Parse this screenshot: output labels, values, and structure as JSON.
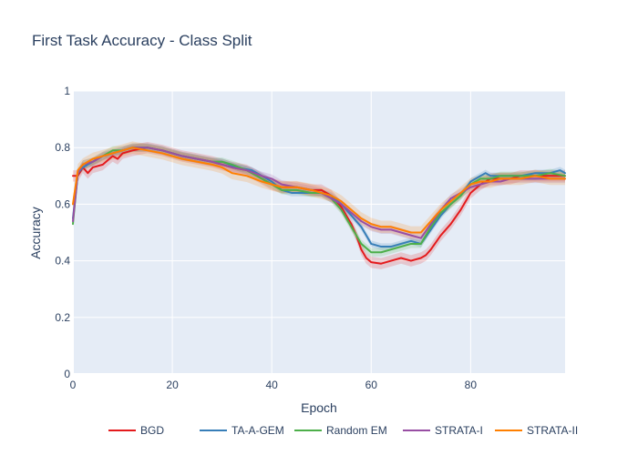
{
  "chart_data": {
    "type": "line",
    "title": "First Task Accuracy - Class Split",
    "xlabel": "Epoch",
    "ylabel": "Accuracy",
    "xlim": [
      0,
      99
    ],
    "ylim": [
      0,
      1
    ],
    "x_ticks": [
      "0",
      "20",
      "40",
      "60",
      "80"
    ],
    "y_ticks": [
      "0",
      "0.2",
      "0.4",
      "0.6",
      "0.8",
      "1"
    ],
    "grid": true,
    "legend_position": "bottom",
    "plot_bg": "#e5ecf6",
    "series": [
      {
        "name": "BGD",
        "color": "#e41a1c",
        "points": [
          [
            0,
            0.7
          ],
          [
            1,
            0.7
          ],
          [
            2,
            0.73
          ],
          [
            3,
            0.71
          ],
          [
            4,
            0.73
          ],
          [
            6,
            0.74
          ],
          [
            8,
            0.77
          ],
          [
            9,
            0.76
          ],
          [
            10,
            0.78
          ],
          [
            12,
            0.79
          ],
          [
            15,
            0.8
          ],
          [
            18,
            0.79
          ],
          [
            20,
            0.78
          ],
          [
            22,
            0.77
          ],
          [
            25,
            0.76
          ],
          [
            28,
            0.75
          ],
          [
            30,
            0.74
          ],
          [
            32,
            0.73
          ],
          [
            35,
            0.72
          ],
          [
            38,
            0.69
          ],
          [
            40,
            0.67
          ],
          [
            42,
            0.66
          ],
          [
            45,
            0.66
          ],
          [
            48,
            0.65
          ],
          [
            50,
            0.65
          ],
          [
            52,
            0.63
          ],
          [
            54,
            0.59
          ],
          [
            56,
            0.53
          ],
          [
            57,
            0.49
          ],
          [
            58,
            0.44
          ],
          [
            59,
            0.41
          ],
          [
            60,
            0.395
          ],
          [
            62,
            0.39
          ],
          [
            64,
            0.4
          ],
          [
            66,
            0.41
          ],
          [
            68,
            0.4
          ],
          [
            70,
            0.41
          ],
          [
            71,
            0.42
          ],
          [
            72,
            0.44
          ],
          [
            74,
            0.49
          ],
          [
            76,
            0.53
          ],
          [
            78,
            0.58
          ],
          [
            80,
            0.64
          ],
          [
            82,
            0.67
          ],
          [
            84,
            0.69
          ],
          [
            86,
            0.69
          ],
          [
            88,
            0.69
          ],
          [
            90,
            0.7
          ],
          [
            92,
            0.7
          ],
          [
            95,
            0.7
          ],
          [
            98,
            0.7
          ],
          [
            99,
            0.7
          ]
        ],
        "band_halfwidth": 0.02
      },
      {
        "name": "TA-A-GEM",
        "color": "#377eb8",
        "points": [
          [
            0,
            0.55
          ],
          [
            1,
            0.71
          ],
          [
            2,
            0.73
          ],
          [
            4,
            0.75
          ],
          [
            6,
            0.77
          ],
          [
            8,
            0.78
          ],
          [
            10,
            0.79
          ],
          [
            12,
            0.8
          ],
          [
            15,
            0.8
          ],
          [
            18,
            0.79
          ],
          [
            20,
            0.78
          ],
          [
            22,
            0.77
          ],
          [
            25,
            0.76
          ],
          [
            28,
            0.75
          ],
          [
            30,
            0.75
          ],
          [
            33,
            0.73
          ],
          [
            36,
            0.72
          ],
          [
            38,
            0.7
          ],
          [
            40,
            0.68
          ],
          [
            42,
            0.65
          ],
          [
            44,
            0.64
          ],
          [
            46,
            0.64
          ],
          [
            48,
            0.64
          ],
          [
            50,
            0.64
          ],
          [
            52,
            0.63
          ],
          [
            54,
            0.6
          ],
          [
            56,
            0.56
          ],
          [
            58,
            0.52
          ],
          [
            60,
            0.46
          ],
          [
            62,
            0.45
          ],
          [
            64,
            0.45
          ],
          [
            66,
            0.46
          ],
          [
            68,
            0.47
          ],
          [
            70,
            0.46
          ],
          [
            72,
            0.51
          ],
          [
            74,
            0.56
          ],
          [
            76,
            0.6
          ],
          [
            78,
            0.63
          ],
          [
            80,
            0.68
          ],
          [
            82,
            0.7
          ],
          [
            83,
            0.71
          ],
          [
            84,
            0.7
          ],
          [
            86,
            0.7
          ],
          [
            88,
            0.7
          ],
          [
            90,
            0.7
          ],
          [
            93,
            0.71
          ],
          [
            96,
            0.71
          ],
          [
            98,
            0.72
          ],
          [
            99,
            0.71
          ]
        ],
        "band_halfwidth": 0.012
      },
      {
        "name": "Random EM",
        "color": "#4daf4a",
        "points": [
          [
            0,
            0.53
          ],
          [
            1,
            0.71
          ],
          [
            2,
            0.74
          ],
          [
            4,
            0.75
          ],
          [
            6,
            0.77
          ],
          [
            8,
            0.79
          ],
          [
            10,
            0.79
          ],
          [
            12,
            0.8
          ],
          [
            15,
            0.8
          ],
          [
            18,
            0.79
          ],
          [
            20,
            0.78
          ],
          [
            22,
            0.77
          ],
          [
            25,
            0.76
          ],
          [
            28,
            0.75
          ],
          [
            30,
            0.75
          ],
          [
            32,
            0.74
          ],
          [
            35,
            0.72
          ],
          [
            38,
            0.69
          ],
          [
            40,
            0.67
          ],
          [
            42,
            0.65
          ],
          [
            45,
            0.65
          ],
          [
            48,
            0.64
          ],
          [
            50,
            0.64
          ],
          [
            52,
            0.62
          ],
          [
            54,
            0.58
          ],
          [
            56,
            0.52
          ],
          [
            58,
            0.46
          ],
          [
            60,
            0.43
          ],
          [
            62,
            0.43
          ],
          [
            64,
            0.44
          ],
          [
            66,
            0.45
          ],
          [
            68,
            0.46
          ],
          [
            70,
            0.46
          ],
          [
            72,
            0.52
          ],
          [
            74,
            0.57
          ],
          [
            76,
            0.6
          ],
          [
            78,
            0.63
          ],
          [
            80,
            0.67
          ],
          [
            82,
            0.69
          ],
          [
            84,
            0.69
          ],
          [
            86,
            0.7
          ],
          [
            88,
            0.7
          ],
          [
            90,
            0.7
          ],
          [
            93,
            0.7
          ],
          [
            96,
            0.71
          ],
          [
            99,
            0.7
          ]
        ],
        "band_halfwidth": 0.015
      },
      {
        "name": "STRATA-I",
        "color": "#984ea3",
        "points": [
          [
            0,
            0.54
          ],
          [
            1,
            0.71
          ],
          [
            2,
            0.74
          ],
          [
            4,
            0.75
          ],
          [
            6,
            0.77
          ],
          [
            8,
            0.78
          ],
          [
            10,
            0.79
          ],
          [
            12,
            0.8
          ],
          [
            15,
            0.8
          ],
          [
            18,
            0.79
          ],
          [
            20,
            0.78
          ],
          [
            22,
            0.77
          ],
          [
            25,
            0.76
          ],
          [
            28,
            0.75
          ],
          [
            30,
            0.74
          ],
          [
            32,
            0.73
          ],
          [
            35,
            0.72
          ],
          [
            38,
            0.7
          ],
          [
            40,
            0.69
          ],
          [
            42,
            0.67
          ],
          [
            45,
            0.66
          ],
          [
            48,
            0.65
          ],
          [
            50,
            0.64
          ],
          [
            52,
            0.62
          ],
          [
            54,
            0.6
          ],
          [
            56,
            0.57
          ],
          [
            58,
            0.54
          ],
          [
            60,
            0.52
          ],
          [
            62,
            0.51
          ],
          [
            64,
            0.51
          ],
          [
            66,
            0.5
          ],
          [
            68,
            0.49
          ],
          [
            70,
            0.48
          ],
          [
            72,
            0.53
          ],
          [
            74,
            0.58
          ],
          [
            76,
            0.62
          ],
          [
            78,
            0.64
          ],
          [
            80,
            0.66
          ],
          [
            82,
            0.67
          ],
          [
            84,
            0.68
          ],
          [
            86,
            0.68
          ],
          [
            88,
            0.69
          ],
          [
            90,
            0.69
          ],
          [
            93,
            0.69
          ],
          [
            96,
            0.69
          ],
          [
            99,
            0.69
          ]
        ],
        "band_halfwidth": 0.015
      },
      {
        "name": "STRATA-II",
        "color": "#ff7f00",
        "points": [
          [
            0,
            0.6
          ],
          [
            1,
            0.72
          ],
          [
            2,
            0.74
          ],
          [
            4,
            0.76
          ],
          [
            6,
            0.77
          ],
          [
            8,
            0.78
          ],
          [
            10,
            0.79
          ],
          [
            12,
            0.8
          ],
          [
            15,
            0.79
          ],
          [
            18,
            0.78
          ],
          [
            20,
            0.77
          ],
          [
            22,
            0.76
          ],
          [
            25,
            0.75
          ],
          [
            28,
            0.74
          ],
          [
            30,
            0.73
          ],
          [
            32,
            0.71
          ],
          [
            35,
            0.7
          ],
          [
            38,
            0.68
          ],
          [
            40,
            0.67
          ],
          [
            42,
            0.66
          ],
          [
            45,
            0.66
          ],
          [
            48,
            0.65
          ],
          [
            50,
            0.64
          ],
          [
            52,
            0.63
          ],
          [
            54,
            0.61
          ],
          [
            56,
            0.58
          ],
          [
            58,
            0.55
          ],
          [
            60,
            0.53
          ],
          [
            62,
            0.52
          ],
          [
            64,
            0.52
          ],
          [
            66,
            0.51
          ],
          [
            68,
            0.5
          ],
          [
            70,
            0.5
          ],
          [
            72,
            0.54
          ],
          [
            74,
            0.58
          ],
          [
            76,
            0.61
          ],
          [
            78,
            0.64
          ],
          [
            80,
            0.67
          ],
          [
            82,
            0.68
          ],
          [
            84,
            0.68
          ],
          [
            86,
            0.69
          ],
          [
            88,
            0.69
          ],
          [
            90,
            0.69
          ],
          [
            93,
            0.7
          ],
          [
            96,
            0.69
          ],
          [
            99,
            0.69
          ]
        ],
        "band_halfwidth": 0.022
      }
    ]
  }
}
